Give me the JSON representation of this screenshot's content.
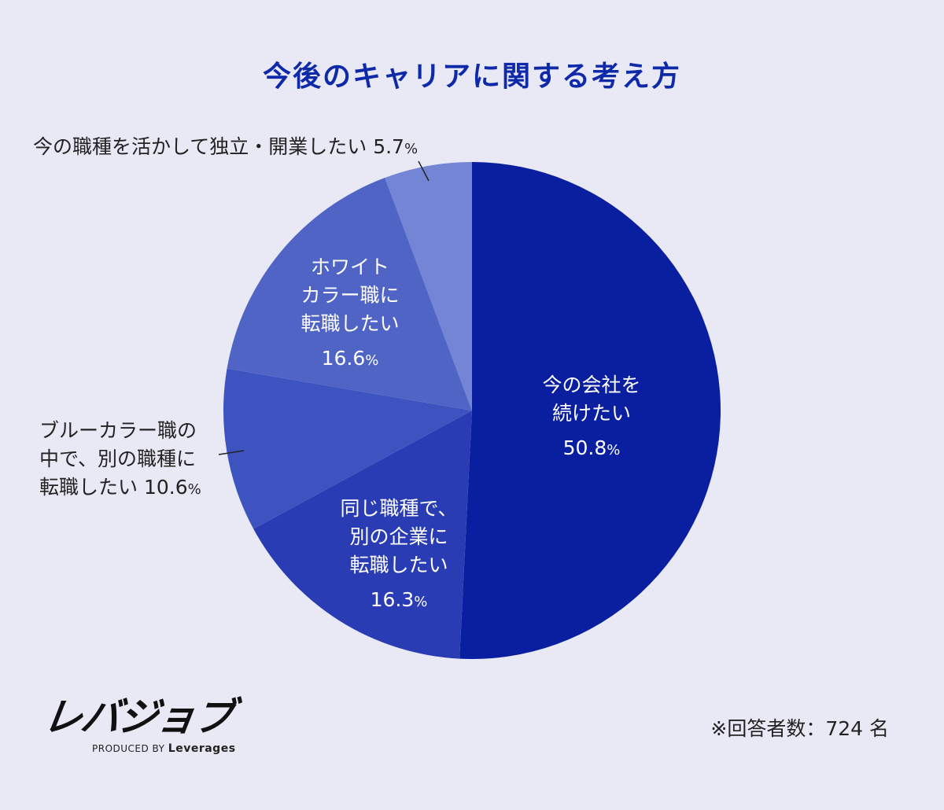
{
  "title": "今後のキャリアに関する考え方",
  "chart_data": {
    "type": "pie",
    "title": "今後のキャリアに関する考え方",
    "unit": "%",
    "slices": [
      {
        "label_lines": [
          "今の会社を",
          "続けたい"
        ],
        "value": 50.8,
        "value_text": "50.8",
        "color": "#0a1f9f",
        "label_position": "inside"
      },
      {
        "label_lines": [
          "同じ職種で、",
          "別の企業に",
          "転職したい"
        ],
        "value": 16.3,
        "value_text": "16.3",
        "color": "#2a3cb4",
        "label_position": "inside"
      },
      {
        "label_lines": [
          "ブルーカラー職の",
          "中で、別の職種に",
          "転職したい"
        ],
        "value": 10.6,
        "value_text": "10.6",
        "color": "#3d53c0",
        "label_position": "outside-left"
      },
      {
        "label_lines": [
          "ホワイト",
          "カラー職に",
          "転職したい"
        ],
        "value": 16.6,
        "value_text": "16.6",
        "color": "#5064c6",
        "label_position": "inside"
      },
      {
        "label_lines": [
          "今の職種を活かして独立・開業したい"
        ],
        "value": 5.7,
        "value_text": "5.7",
        "color": "#7485d5",
        "label_position": "outside-top"
      }
    ]
  },
  "brand": {
    "logo_text": "レバジョブ",
    "produced_by": "PRODUCED BY",
    "company": "Leverages"
  },
  "respondents_note": "※回答者数：724 名"
}
